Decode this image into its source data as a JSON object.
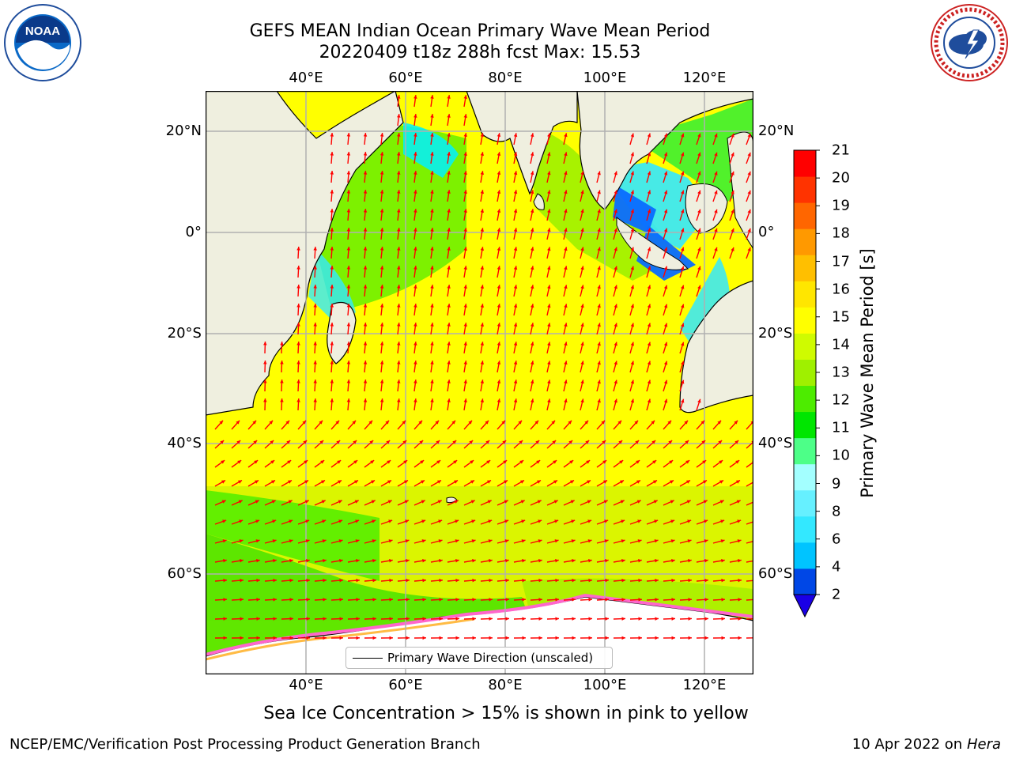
{
  "title": {
    "line1": "GEFS MEAN Indian Ocean Primary Wave Mean Period",
    "line2": "20220409 t18z 288h fcst   Max: 15.53"
  },
  "axes": {
    "lon_ticks": [
      "40°E",
      "60°E",
      "80°E",
      "100°E",
      "120°E"
    ],
    "lat_ticks": [
      "20°N",
      "0°",
      "20°S",
      "40°S",
      "60°S"
    ]
  },
  "colorbar": {
    "title": "Primary Wave Mean Period [s]",
    "ticks": [
      "2",
      "4",
      "6",
      "8",
      "9",
      "10",
      "11",
      "12",
      "13",
      "14",
      "15",
      "16",
      "17",
      "18",
      "19",
      "20",
      "21"
    ],
    "colors": [
      "#0047e6",
      "#00c4ff",
      "#33e8ff",
      "#66f0ff",
      "#a3ffff",
      "#4dff88",
      "#00e600",
      "#4dec00",
      "#9ff000",
      "#cffb00",
      "#ffff00",
      "#ffe600",
      "#ffbf00",
      "#ff9900",
      "#ff6600",
      "#ff3300",
      "#ff0000"
    ],
    "extend_color": "#1a00e6"
  },
  "legend": {
    "label": "Primary Wave Direction (unscaled)"
  },
  "caption": "Sea Ice Concentration > 15% is shown in pink to yellow",
  "footer": {
    "left": "NCEP/EMC/Verification Post Processing Product Generation Branch",
    "right_date": "10 Apr 2022 on ",
    "right_host": "Hera"
  },
  "colors": {
    "land": "#efefdf",
    "arrow": "#ff0000",
    "grid": "#b0b0b0",
    "ice": "#ff66cc"
  },
  "logos": {
    "noaa": "NOAA",
    "nws": "NATIONAL WEATHER SERVICE"
  }
}
